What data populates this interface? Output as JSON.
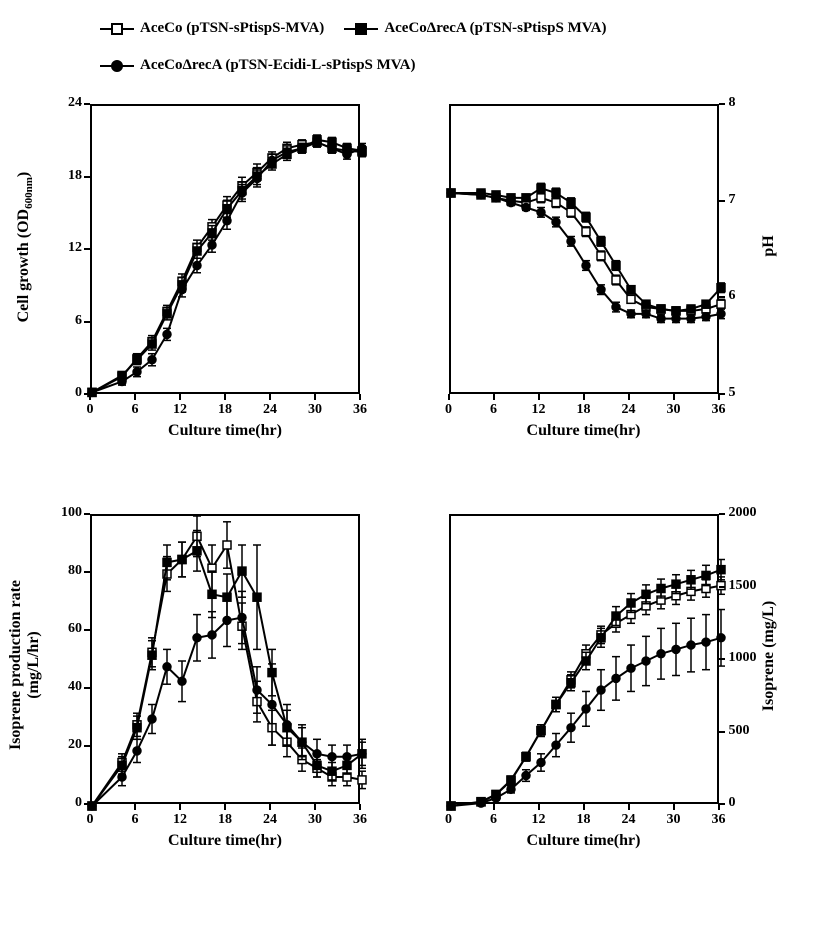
{
  "legend": {
    "items": [
      {
        "label": "AceCo (pTSN-sPtispS-MVA)",
        "marker": "open-square"
      },
      {
        "label": "AceCoΔrecA (pTSN-sPtispS MVA)",
        "marker": "filled-square"
      },
      {
        "label": "AceCoΔrecA (pTSN-Ecidi-L-sPtispS MVA)",
        "marker": "filled-circle"
      }
    ]
  },
  "colors": {
    "line": "#000000",
    "marker_fill_open": "#ffffff",
    "marker_fill_closed": "#000000",
    "axis": "#000000",
    "background": "#ffffff"
  },
  "panels": {
    "top_left": {
      "type": "line",
      "xlabel": "Culture time(hr)",
      "ylabel": "Cell growth (OD₆₀₀ₙₘ)",
      "xlim": [
        0,
        36
      ],
      "ylim": [
        0,
        24
      ],
      "xticks": [
        0,
        6,
        12,
        18,
        24,
        30,
        36
      ],
      "yticks": [
        0,
        6,
        12,
        18,
        24
      ],
      "ylabel_side": "left",
      "series": [
        {
          "marker": "open-square",
          "x": [
            0,
            4,
            6,
            8,
            10,
            12,
            14,
            16,
            18,
            20,
            22,
            24,
            26,
            28,
            30,
            32,
            34,
            36
          ],
          "y": [
            0.3,
            1.6,
            3.1,
            4.5,
            7.0,
            9.5,
            12.3,
            14.0,
            15.8,
            17.4,
            18.5,
            19.7,
            20.5,
            20.8,
            21.0,
            20.5,
            20.3,
            20.2
          ],
          "err": [
            0,
            0.3,
            0.4,
            0.5,
            0.5,
            0.6,
            0.6,
            0.6,
            0.7,
            0.7,
            0.7,
            0.5,
            0.5,
            0.4,
            0.4,
            0.4,
            0.4,
            0.4
          ]
        },
        {
          "marker": "filled-square",
          "x": [
            0,
            4,
            6,
            8,
            10,
            12,
            14,
            16,
            18,
            20,
            22,
            24,
            26,
            28,
            30,
            32,
            34,
            36
          ],
          "y": [
            0.3,
            1.7,
            3.0,
            4.3,
            6.8,
            9.2,
            12.0,
            13.5,
            15.5,
            17.0,
            18.2,
            19.2,
            20.0,
            20.5,
            21.2,
            21.0,
            20.5,
            20.3
          ],
          "err": [
            0,
            0.3,
            0.4,
            0.5,
            0.5,
            0.6,
            0.6,
            0.6,
            0.7,
            0.7,
            0.7,
            0.5,
            0.5,
            0.4,
            0.4,
            0.4,
            0.4,
            0.4
          ]
        },
        {
          "marker": "filled-circle",
          "x": [
            0,
            4,
            6,
            8,
            10,
            12,
            14,
            16,
            18,
            20,
            22,
            24,
            26,
            28,
            30,
            32,
            34,
            36
          ],
          "y": [
            0.3,
            1.2,
            2.0,
            3.0,
            5.1,
            8.8,
            10.8,
            12.5,
            14.5,
            16.8,
            18.0,
            19.5,
            20.2,
            20.5,
            21.0,
            20.5,
            20.0,
            20.5
          ],
          "err": [
            0,
            0.3,
            0.4,
            0.5,
            0.5,
            0.6,
            0.6,
            0.6,
            0.7,
            0.7,
            0.7,
            0.5,
            0.5,
            0.4,
            0.4,
            0.4,
            0.4,
            0.4
          ]
        }
      ]
    },
    "top_right": {
      "type": "line",
      "xlabel": "Culture time(hr)",
      "ylabel": "pH",
      "xlim": [
        0,
        36
      ],
      "ylim": [
        5,
        8
      ],
      "xticks": [
        0,
        6,
        12,
        18,
        24,
        30,
        36
      ],
      "yticks": [
        5,
        6,
        7,
        8
      ],
      "ylabel_side": "right",
      "series": [
        {
          "marker": "open-square",
          "x": [
            0,
            4,
            6,
            8,
            10,
            12,
            14,
            16,
            18,
            20,
            22,
            24,
            26,
            28,
            30,
            32,
            34,
            36
          ],
          "y": [
            7.1,
            7.08,
            7.05,
            7.02,
            7.0,
            7.05,
            7.0,
            6.9,
            6.7,
            6.45,
            6.2,
            6.0,
            5.92,
            5.9,
            5.88,
            5.88,
            5.9,
            5.95
          ],
          "err": [
            0,
            0.02,
            0.03,
            0.03,
            0.03,
            0.05,
            0.05,
            0.05,
            0.05,
            0.05,
            0.05,
            0.04,
            0.04,
            0.04,
            0.04,
            0.04,
            0.04,
            0.05
          ]
        },
        {
          "marker": "filled-square",
          "x": [
            0,
            4,
            6,
            8,
            10,
            12,
            14,
            16,
            18,
            20,
            22,
            24,
            26,
            28,
            30,
            32,
            34,
            36
          ],
          "y": [
            7.1,
            7.1,
            7.08,
            7.05,
            7.05,
            7.15,
            7.1,
            7.0,
            6.85,
            6.6,
            6.35,
            6.1,
            5.95,
            5.9,
            5.88,
            5.9,
            5.95,
            6.12
          ],
          "err": [
            0,
            0.02,
            0.03,
            0.03,
            0.03,
            0.05,
            0.05,
            0.05,
            0.05,
            0.05,
            0.05,
            0.04,
            0.04,
            0.04,
            0.04,
            0.04,
            0.04,
            0.05
          ]
        },
        {
          "marker": "filled-circle",
          "x": [
            0,
            4,
            6,
            8,
            10,
            12,
            14,
            16,
            18,
            20,
            22,
            24,
            26,
            28,
            30,
            32,
            34,
            36
          ],
          "y": [
            7.1,
            7.08,
            7.05,
            7.0,
            6.95,
            6.9,
            6.8,
            6.6,
            6.35,
            6.1,
            5.92,
            5.85,
            5.85,
            5.8,
            5.8,
            5.8,
            5.82,
            5.85
          ],
          "err": [
            0,
            0.02,
            0.03,
            0.03,
            0.03,
            0.05,
            0.05,
            0.05,
            0.05,
            0.05,
            0.05,
            0.04,
            0.04,
            0.04,
            0.04,
            0.04,
            0.04,
            0.05
          ]
        }
      ]
    },
    "bottom_left": {
      "type": "line",
      "xlabel": "Culture time(hr)",
      "ylabel": "Isoprene production rate\n(mg/L/hr)",
      "xlim": [
        0,
        36
      ],
      "ylim": [
        0,
        100
      ],
      "xticks": [
        0,
        6,
        12,
        18,
        24,
        30,
        36
      ],
      "yticks": [
        0,
        20,
        40,
        60,
        80,
        100
      ],
      "ylabel_side": "left",
      "series": [
        {
          "marker": "open-square",
          "x": [
            0,
            4,
            6,
            8,
            10,
            12,
            14,
            16,
            18,
            20,
            22,
            24,
            26,
            28,
            30,
            32,
            34,
            36
          ],
          "y": [
            0,
            15,
            28,
            53,
            80,
            85,
            93,
            82,
            90,
            62,
            36,
            27,
            22,
            16,
            13,
            10,
            10,
            9
          ],
          "err": [
            0,
            3,
            4,
            5,
            6,
            6,
            7,
            8,
            8,
            8,
            7,
            6,
            5,
            4,
            3,
            3,
            3,
            3
          ]
        },
        {
          "marker": "filled-square",
          "x": [
            0,
            4,
            6,
            8,
            10,
            12,
            14,
            16,
            18,
            20,
            22,
            24,
            26,
            28,
            30,
            32,
            34,
            36
          ],
          "y": [
            0,
            14,
            27,
            52,
            84,
            85,
            88,
            73,
            72,
            81,
            72,
            46,
            27,
            22,
            14,
            12,
            14,
            18
          ],
          "err": [
            0,
            3,
            4,
            5,
            6,
            6,
            7,
            8,
            8,
            9,
            18,
            8,
            6,
            5,
            4,
            3,
            3,
            5
          ]
        },
        {
          "marker": "filled-circle",
          "x": [
            0,
            4,
            6,
            8,
            10,
            12,
            14,
            16,
            18,
            20,
            22,
            24,
            26,
            28,
            30,
            32,
            34,
            36
          ],
          "y": [
            0,
            10,
            19,
            30,
            48,
            43,
            58,
            59,
            64,
            65,
            40,
            35,
            28,
            22,
            18,
            17,
            17,
            18
          ],
          "err": [
            0,
            3,
            4,
            5,
            6,
            7,
            8,
            8,
            9,
            9,
            8,
            14,
            7,
            6,
            5,
            4,
            4,
            4
          ]
        }
      ]
    },
    "bottom_right": {
      "type": "line",
      "xlabel": "Culture time(hr)",
      "ylabel": "Isoprene (mg/L)",
      "xlim": [
        0,
        36
      ],
      "ylim": [
        0,
        2000
      ],
      "xticks": [
        0,
        6,
        12,
        18,
        24,
        30,
        36
      ],
      "yticks": [
        0,
        500,
        1000,
        1500,
        2000
      ],
      "ylabel_side": "right",
      "series": [
        {
          "marker": "open-square",
          "x": [
            0,
            4,
            6,
            8,
            10,
            12,
            14,
            16,
            18,
            20,
            22,
            24,
            26,
            28,
            30,
            32,
            34,
            36
          ],
          "y": [
            0,
            30,
            80,
            180,
            340,
            520,
            700,
            870,
            1050,
            1180,
            1260,
            1320,
            1380,
            1420,
            1450,
            1480,
            1500,
            1520
          ],
          "err": [
            0,
            10,
            15,
            20,
            30,
            40,
            50,
            55,
            60,
            60,
            60,
            60,
            60,
            60,
            60,
            60,
            60,
            60
          ]
        },
        {
          "marker": "filled-square",
          "x": [
            0,
            4,
            6,
            8,
            10,
            12,
            14,
            16,
            18,
            20,
            22,
            24,
            26,
            28,
            30,
            32,
            34,
            36
          ],
          "y": [
            0,
            28,
            78,
            175,
            340,
            520,
            700,
            850,
            1000,
            1160,
            1310,
            1400,
            1460,
            1500,
            1530,
            1560,
            1590,
            1630
          ],
          "err": [
            0,
            10,
            15,
            20,
            30,
            40,
            50,
            55,
            60,
            65,
            65,
            65,
            65,
            65,
            65,
            65,
            70,
            70
          ]
        },
        {
          "marker": "filled-circle",
          "x": [
            0,
            4,
            6,
            8,
            10,
            12,
            14,
            16,
            18,
            20,
            22,
            24,
            26,
            28,
            30,
            32,
            34,
            36
          ],
          "y": [
            0,
            20,
            55,
            115,
            210,
            300,
            420,
            540,
            670,
            800,
            880,
            950,
            1000,
            1050,
            1080,
            1110,
            1130,
            1160
          ],
          "err": [
            0,
            10,
            15,
            25,
            40,
            60,
            80,
            100,
            120,
            140,
            150,
            160,
            170,
            175,
            180,
            185,
            190,
            195
          ]
        }
      ]
    }
  },
  "style": {
    "marker_size": 8,
    "line_width": 2,
    "tick_length": 6,
    "axis_width": 2,
    "font_size_label": 16,
    "font_size_tick": 14,
    "plot_inner_width": 270,
    "plot_inner_height": 290
  }
}
